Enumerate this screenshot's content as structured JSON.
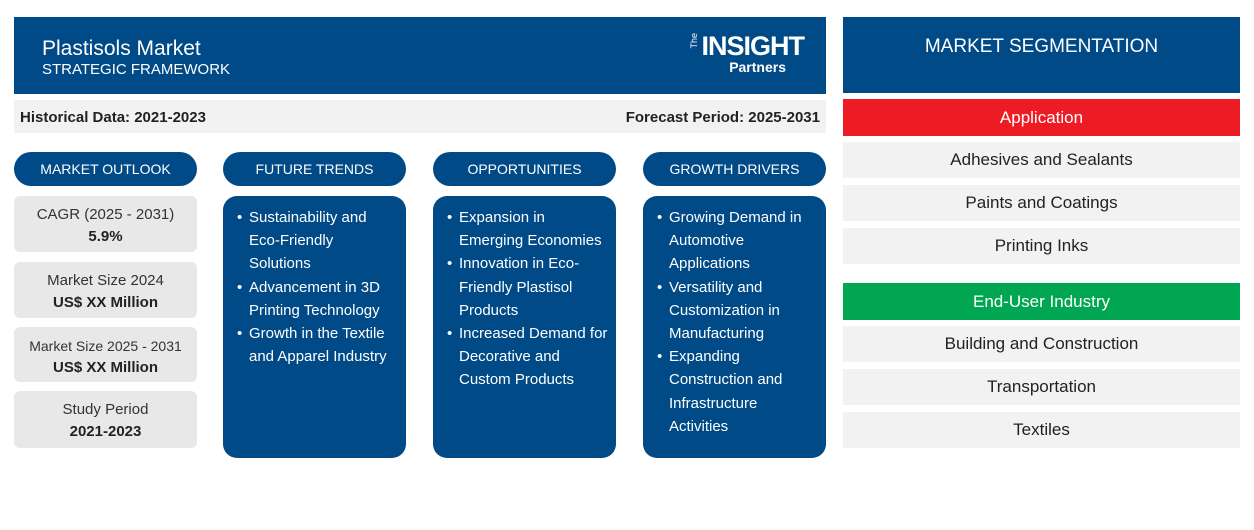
{
  "header": {
    "title": "Plastisols Market",
    "subtitle": "STRATEGIC FRAMEWORK",
    "logo": {
      "the": "The",
      "main": "INSIGHT",
      "sub": "Partners"
    }
  },
  "info_bar": {
    "historical": "Historical Data: 2021-2023",
    "forecast": "Forecast Period: 2025-2031"
  },
  "columns": [
    {
      "title": "MARKET OUTLOOK"
    },
    {
      "title": "FUTURE TRENDS",
      "items": [
        "Sustainability and Eco-Friendly Solutions",
        "Advancement in 3D Printing Technology",
        "Growth in the Textile and Apparel Industry"
      ]
    },
    {
      "title": "OPPORTUNITIES",
      "items": [
        "Expansion in Emerging Economies",
        "Innovation in Eco-Friendly Plastisol Products",
        "Increased Demand for Decorative and Custom Products"
      ]
    },
    {
      "title": "GROWTH DRIVERS",
      "items": [
        "Growing Demand in Automotive Applications",
        "Versatility and Customization in Manufacturing",
        "Expanding Construction and Infrastructure Activities"
      ]
    }
  ],
  "stats": [
    {
      "label": "CAGR (2025 - 2031)",
      "value": "5.9%"
    },
    {
      "label": "Market Size 2024",
      "value": "US$ XX Million"
    },
    {
      "label": "Market Size 2025 - 2031",
      "value": "US$ XX Million"
    },
    {
      "label": "Study Period",
      "value": "2021-2023"
    }
  ],
  "segmentation": {
    "title": "MARKET SEGMENTATION",
    "groups": [
      {
        "name": "Application",
        "color": "#ed1c24",
        "items": [
          "Adhesives and Sealants",
          "Paints and Coatings",
          "Printing Inks"
        ]
      },
      {
        "name": "End-User Industry",
        "color": "#00a651",
        "items": [
          "Building and Construction",
          "Transportation",
          "Textiles"
        ]
      }
    ]
  },
  "colors": {
    "primary": "#004a87"
  }
}
